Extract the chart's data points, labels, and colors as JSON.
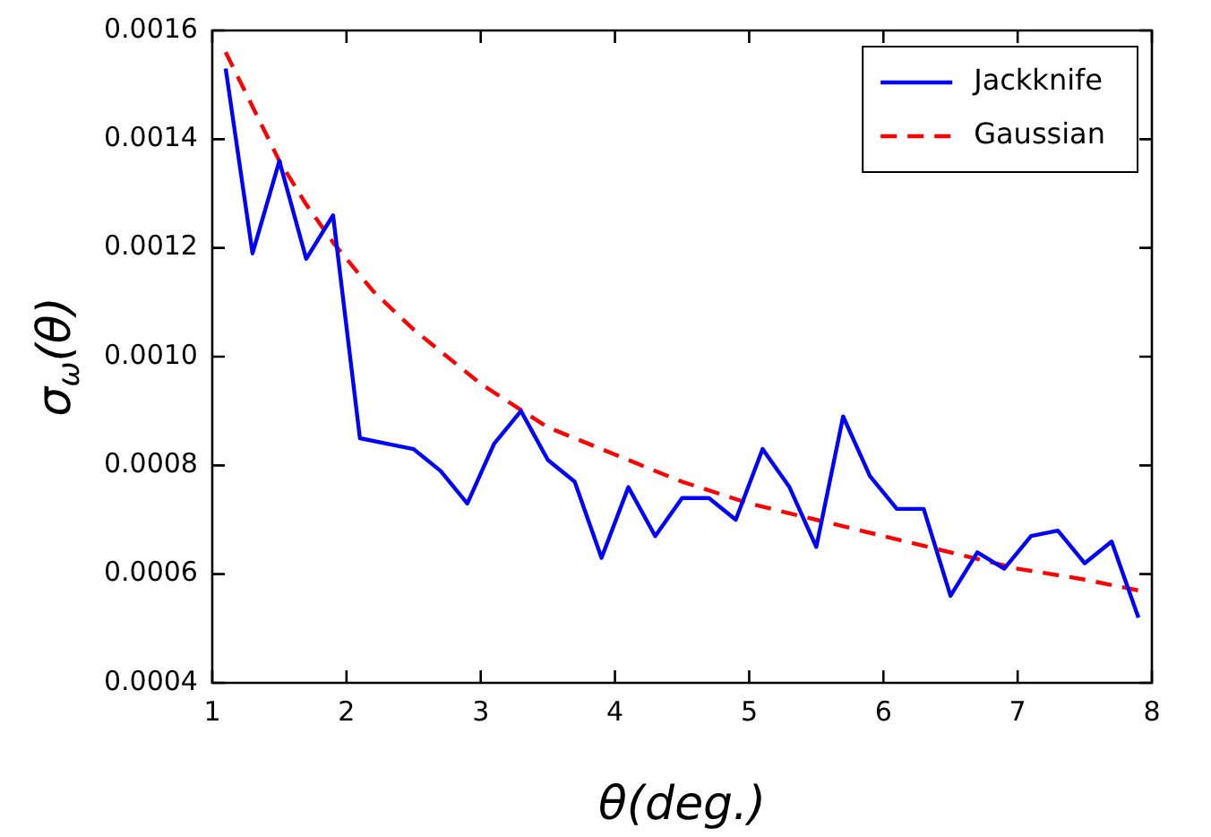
{
  "chart_data": {
    "type": "line",
    "xlabel": "θ(deg.)",
    "ylabel": "σ$_{ω}$(θ)",
    "xlim": [
      1,
      8
    ],
    "xticks": [
      1,
      2,
      3,
      4,
      5,
      6,
      7,
      8
    ],
    "ylim": [
      0.0004,
      0.0016
    ],
    "yticks": [
      {
        "value": 0.0004,
        "label": "0.0004"
      },
      {
        "value": 0.0006,
        "label": "0.0006"
      },
      {
        "value": 0.0008,
        "label": "0.0008"
      },
      {
        "value": 0.001,
        "label": "0.0010"
      },
      {
        "value": 0.0012,
        "label": "0.0012"
      },
      {
        "value": 0.0014,
        "label": "0.0014"
      },
      {
        "value": 0.0016,
        "label": "0.0016"
      }
    ],
    "grid": false,
    "legend": "top right",
    "marker": "none",
    "series": [
      {
        "name": "Jackknife",
        "color": "#0000ff",
        "line_style": "solid",
        "x": [
          1.1,
          1.3,
          1.5,
          1.7,
          1.9,
          2.1,
          2.3,
          2.5,
          2.7,
          2.9,
          3.1,
          3.3,
          3.5,
          3.7,
          3.9,
          4.1,
          4.3,
          4.5,
          4.7,
          4.9,
          5.1,
          5.3,
          5.5,
          5.7,
          5.9,
          6.1,
          6.3,
          6.5,
          6.7,
          6.9,
          7.1,
          7.3,
          7.5,
          7.7,
          7.9
        ],
        "values": [
          0.00153,
          0.00119,
          0.00136,
          0.00118,
          0.00126,
          0.00085,
          0.00084,
          0.00083,
          0.00079,
          0.00073,
          0.00084,
          0.0009,
          0.00081,
          0.00077,
          0.00063,
          0.00076,
          0.00067,
          0.00074,
          0.00074,
          0.0007,
          0.00083,
          0.00076,
          0.00065,
          0.00089,
          0.00078,
          0.00072,
          0.00072,
          0.00056,
          0.00064,
          0.00061,
          0.00067,
          0.00068,
          0.00062,
          0.00066,
          0.00052
        ]
      },
      {
        "name": "Gaussian",
        "color": "#ff0000",
        "line_style": "dashed",
        "x": [
          1.1,
          1.3,
          1.5,
          1.7,
          1.9,
          2.2,
          2.5,
          3,
          3.5,
          4,
          4.5,
          5,
          5.5,
          6,
          6.5,
          7,
          7.5,
          7.9
        ],
        "values": [
          0.00156,
          0.00146,
          0.00136,
          0.00128,
          0.00121,
          0.00112,
          0.00105,
          0.00095,
          0.00087,
          0.00082,
          0.00077,
          0.00073,
          0.0007,
          0.00067,
          0.00064,
          0.00061,
          0.00059,
          0.00057
        ]
      }
    ]
  }
}
